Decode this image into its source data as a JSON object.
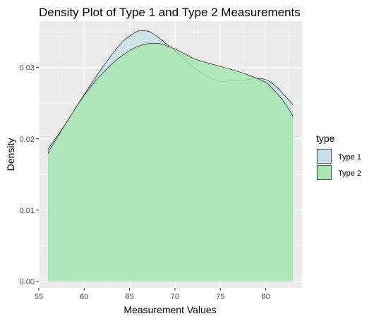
{
  "chart_data": {
    "type": "area",
    "title": "Density Plot of Type 1 and Type 2 Measurements",
    "xlabel": "Measurement Values",
    "ylabel": "Density",
    "xlim": [
      55,
      84
    ],
    "ylim": [
      -0.0009,
      0.0365
    ],
    "xticks": [
      55,
      60,
      65,
      70,
      75,
      80
    ],
    "yticks": [
      0.0,
      0.01,
      0.02,
      0.03
    ],
    "ytick_labels": [
      "0.00",
      "0.01",
      "0.02",
      "0.03"
    ],
    "grid": true,
    "legend": {
      "title": "type",
      "position": "right"
    },
    "series": [
      {
        "name": "Type 1",
        "color": "#c9e0ea",
        "x": [
          56,
          58,
          60,
          62,
          64,
          65,
          66,
          67,
          68,
          70,
          72,
          74,
          75,
          76,
          78,
          79,
          80,
          81,
          82,
          83
        ],
        "y": [
          0.0185,
          0.0222,
          0.0262,
          0.03,
          0.0333,
          0.0344,
          0.0351,
          0.0351,
          0.0344,
          0.0323,
          0.0301,
          0.0285,
          0.0281,
          0.0281,
          0.0283,
          0.0285,
          0.0283,
          0.0275,
          0.0262,
          0.0248
        ]
      },
      {
        "name": "Type 2",
        "color": "#a8e6b2",
        "x": [
          56,
          58,
          60,
          62,
          64,
          66,
          68,
          70,
          72,
          74,
          76,
          78,
          80,
          81,
          82,
          83
        ],
        "y": [
          0.018,
          0.0222,
          0.0261,
          0.0292,
          0.0315,
          0.033,
          0.0334,
          0.0326,
          0.0313,
          0.0305,
          0.0298,
          0.029,
          0.0279,
          0.0267,
          0.0252,
          0.0232
        ]
      }
    ]
  }
}
